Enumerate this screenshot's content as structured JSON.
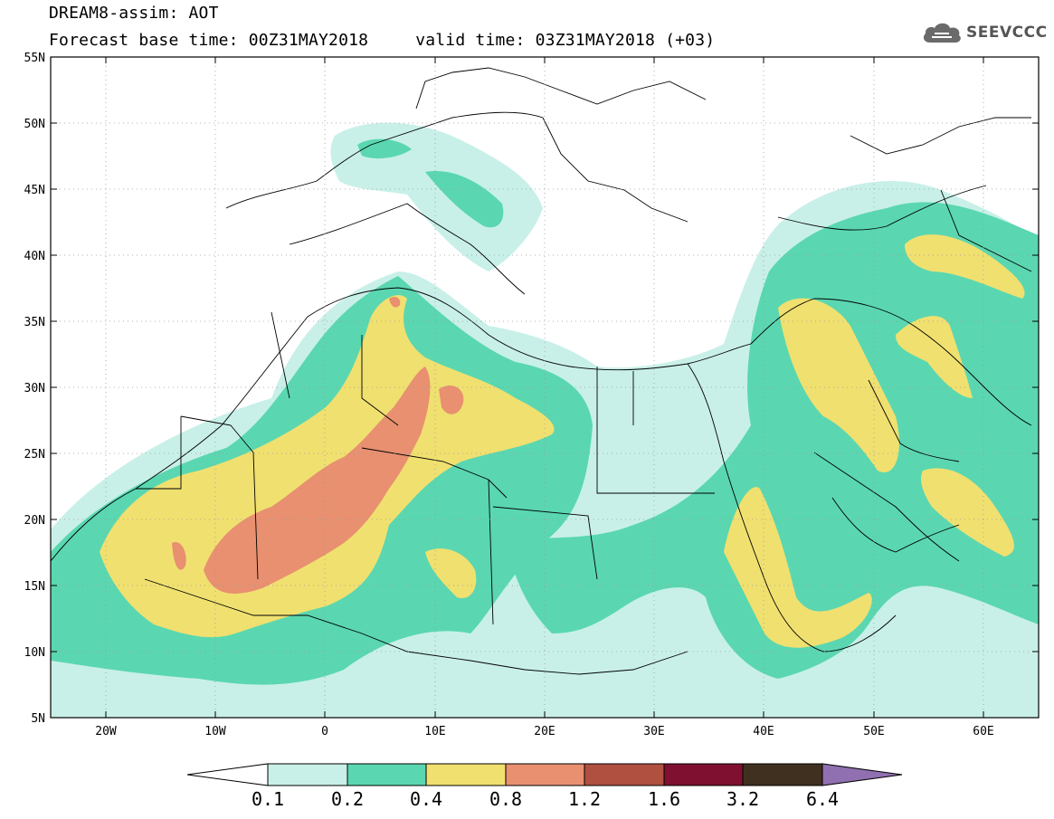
{
  "header": {
    "title": "DREAM8-assim: AOT",
    "base_time": "Forecast base time: 00Z31MAY2018",
    "valid_time": "valid time: 03Z31MAY2018 (+03)",
    "logo": "SEEVCCC",
    "logo_icon": "cloud-icon"
  },
  "axes": {
    "lat_labels": [
      "55N",
      "50N",
      "45N",
      "40N",
      "35N",
      "30N",
      "25N",
      "20N",
      "15N",
      "10N",
      "5N"
    ],
    "lon_labels": [
      "20W",
      "10W",
      "0",
      "10E",
      "20E",
      "30E",
      "40E",
      "50E",
      "60E"
    ],
    "lat_range": [
      5,
      55
    ],
    "lon_range": [
      -25,
      65
    ]
  },
  "colorbar": {
    "labels": [
      "0.1",
      "0.2",
      "0.4",
      "0.8",
      "1.2",
      "1.6",
      "3.2",
      "6.4"
    ],
    "colors": [
      "#c8f0e8",
      "#5ad7b0",
      "#f0e070",
      "#e89070",
      "#b05040",
      "#801030",
      "#403020",
      "#9070b0"
    ]
  }
}
